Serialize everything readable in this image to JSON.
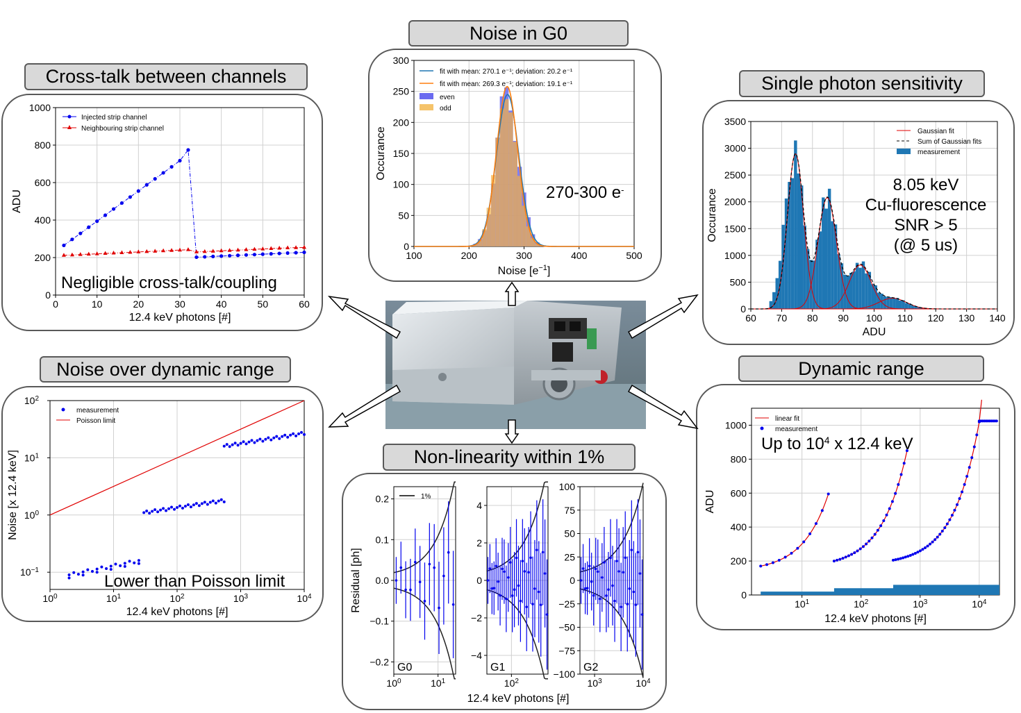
{
  "panels": {
    "noise_g0": {
      "title": "Noise in G0",
      "annotation": "270-300 e",
      "annotation_sup": "-",
      "ylabel": "Occurance",
      "xlabel": "Noise [e",
      "xlabel_sup": "−1",
      "xlabel_end": "]",
      "legend": [
        "fit with mean: 270.1 e⁻¹; deviation: 20.2 e⁻¹",
        "fit with mean: 269.3 e⁻¹; deviation: 19.1 e⁻¹",
        "even",
        "odd"
      ],
      "xticks": [
        "100",
        "200",
        "300",
        "400",
        "500"
      ],
      "yticks": [
        "0",
        "50",
        "100",
        "150",
        "200",
        "250",
        "300"
      ]
    },
    "crosstalk": {
      "title": "Cross-talk between channels",
      "annotation": "Negligible cross-talk/coupling",
      "ylabel": "ADU",
      "xlabel": "12.4 keV photons [#]",
      "legend": [
        "Injected strip channel",
        "Neighbouring strip channel"
      ],
      "xticks": [
        "0",
        "10",
        "20",
        "30",
        "40",
        "50",
        "60"
      ],
      "yticks": [
        "0",
        "200",
        "400",
        "600",
        "800",
        "1000"
      ]
    },
    "single_photon": {
      "title": "Single photon sensitivity",
      "ylabel": "Occurance",
      "xlabel": "ADU",
      "annotation": [
        "8.05 keV",
        "Cu-fluorescence",
        "SNR > 5",
        "(@ 5 us)"
      ],
      "legend": [
        "Gaussian fit",
        "Sum of Gaussian fits",
        "measurement"
      ],
      "xticks": [
        "60",
        "70",
        "80",
        "90",
        "100",
        "110",
        "120",
        "130",
        "140"
      ],
      "yticks": [
        "0",
        "500",
        "1000",
        "1500",
        "2000",
        "2500",
        "3000",
        "3500"
      ]
    },
    "noise_range": {
      "title": "Noise over dynamic range",
      "annotation": "Lower than Poisson limit",
      "ylabel": "Noise [x 12.4 keV]",
      "xlabel": "12.4 keV photons [#]",
      "legend": [
        "measurement",
        "Poisson limit"
      ]
    },
    "dynamic_range": {
      "title": "Dynamic range",
      "annotation": "Up to 10",
      "annotation_sup": "4",
      "annotation_end": " x 12.4 keV",
      "ylabel": "ADU",
      "xlabel": "12.4 keV photons [#]",
      "legend": [
        "linear fit",
        "measurement"
      ],
      "yticks": [
        "0",
        "200",
        "400",
        "600",
        "800",
        "1000"
      ]
    },
    "nonlinearity": {
      "title": "Non-linearity within 1%",
      "ylabel": "Residual [ph]",
      "xlabel": "12.4 keV photons [#]",
      "legend": [
        "1%"
      ],
      "subplots": [
        "G0",
        "G1",
        "G2"
      ],
      "g0_yticks": [
        "0.2",
        "0.1",
        "0.0",
        "−0.1",
        "−0.2"
      ],
      "g1_yticks": [
        "4",
        "2",
        "0",
        "−2",
        "−4"
      ],
      "g2_yticks": [
        "100",
        "75",
        "50",
        "25",
        "0",
        "−25",
        "−50",
        "−75",
        "−100"
      ]
    }
  },
  "colors": {
    "blue": "#0000ee",
    "red": "#e00000",
    "hist_blue": "#1f77b4",
    "orange": "#ff7f0e"
  },
  "chart_data": [
    {
      "type": "line",
      "title": "Cross-talk between channels",
      "xlabel": "12.4 keV photons [#]",
      "ylabel": "ADU",
      "xlim": [
        0,
        60
      ],
      "ylim": [
        0,
        1000
      ],
      "series": [
        {
          "name": "Injected strip channel",
          "x": [
            2,
            4,
            6,
            8,
            10,
            12,
            14,
            16,
            18,
            20,
            22,
            24,
            26,
            28,
            30,
            32,
            34,
            36,
            38,
            40,
            42,
            44,
            46,
            48,
            50,
            52,
            54,
            56,
            58,
            60
          ],
          "values": [
            265,
            297,
            329,
            362,
            394,
            426,
            459,
            491,
            523,
            555,
            588,
            620,
            652,
            684,
            717,
            774,
            202,
            204,
            206,
            208,
            210,
            212,
            214,
            216,
            218,
            220,
            222,
            224,
            226,
            228
          ]
        },
        {
          "name": "Neighbouring strip channel",
          "x": [
            2,
            4,
            6,
            8,
            10,
            12,
            14,
            16,
            18,
            20,
            22,
            24,
            26,
            28,
            30,
            32,
            34,
            36,
            38,
            40,
            42,
            44,
            46,
            48,
            50,
            52,
            54,
            56,
            58,
            60
          ],
          "values": [
            212,
            214,
            216,
            218,
            220,
            222,
            224,
            226,
            228,
            230,
            232,
            234,
            236,
            238,
            240,
            242,
            230,
            232,
            234,
            236,
            238,
            240,
            242,
            244,
            246,
            248,
            250,
            252,
            253,
            254
          ]
        }
      ]
    },
    {
      "type": "bar",
      "title": "Noise in G0",
      "xlabel": "Noise [e^-1]",
      "ylabel": "Occurance",
      "xlim": [
        100,
        500
      ],
      "ylim": [
        0,
        300
      ],
      "series": [
        {
          "name": "fit with mean: 270.1 e⁻¹; deviation: 20.2 e⁻¹",
          "mean": 270.1,
          "sigma": 20.2,
          "peak": 245
        },
        {
          "name": "fit with mean: 269.3 e⁻¹; deviation: 19.1 e⁻¹",
          "mean": 269.3,
          "sigma": 19.1,
          "peak": 258
        }
      ]
    },
    {
      "type": "bar",
      "title": "Single photon sensitivity",
      "xlabel": "ADU",
      "ylabel": "Occurance",
      "xlim": [
        60,
        140
      ],
      "ylim": [
        0,
        3500
      ],
      "gaussians": [
        {
          "mean": 74.5,
          "sigma": 2.6,
          "peak": 2900
        },
        {
          "mean": 84.8,
          "sigma": 3.0,
          "peak": 2080
        },
        {
          "mean": 95.5,
          "sigma": 3.6,
          "peak": 820
        },
        {
          "mean": 106,
          "sigma": 4.5,
          "peak": 200
        }
      ]
    },
    {
      "type": "scatter",
      "title": "Noise over dynamic range",
      "xlabel": "12.4 keV photons [#]",
      "ylabel": "Noise [x 12.4 keV]",
      "xscale": "log",
      "yscale": "log",
      "xlim": [
        1,
        10000
      ],
      "ylim": [
        0.05,
        100
      ],
      "poisson_limit": {
        "x": [
          1,
          10000
        ],
        "values": [
          1,
          100
        ]
      },
      "groups": [
        {
          "x_range": [
            2,
            25
          ],
          "y_range": [
            0.09,
            0.16
          ]
        },
        {
          "x_range": [
            30,
            550
          ],
          "y_range": [
            1.1,
            1.8
          ]
        },
        {
          "x_range": [
            550,
            10000
          ],
          "y_range": [
            16,
            27
          ]
        }
      ]
    },
    {
      "type": "line",
      "title": "Dynamic range",
      "xlabel": "12.4 keV photons [#]",
      "ylabel": "ADU",
      "xscale": "log",
      "xlim": [
        1.4,
        22000
      ],
      "ylim": [
        0,
        1100
      ],
      "series": [
        {
          "name": "G0",
          "x_range": [
            2,
            28
          ],
          "y_range": [
            170,
            595
          ]
        },
        {
          "name": "G1",
          "x_range": [
            35,
            600
          ],
          "y_range": [
            200,
            850
          ]
        },
        {
          "name": "G2",
          "x_range": [
            350,
            10000
          ],
          "y_range": [
            205,
            1020
          ]
        }
      ]
    },
    {
      "type": "scatter",
      "title": "Non-linearity within 1%",
      "xlabel": "12.4 keV photons [#]",
      "ylabel": "Residual [ph]",
      "subplots": [
        {
          "name": "G0",
          "xlim": [
            1,
            25
          ],
          "ylim": [
            -0.23,
            0.23
          ]
        },
        {
          "name": "G1",
          "xlim": [
            30,
            600
          ],
          "ylim": [
            -5,
            5
          ]
        },
        {
          "name": "G2",
          "xlim": [
            500,
            10000
          ],
          "ylim": [
            -100,
            100
          ]
        }
      ]
    }
  ]
}
